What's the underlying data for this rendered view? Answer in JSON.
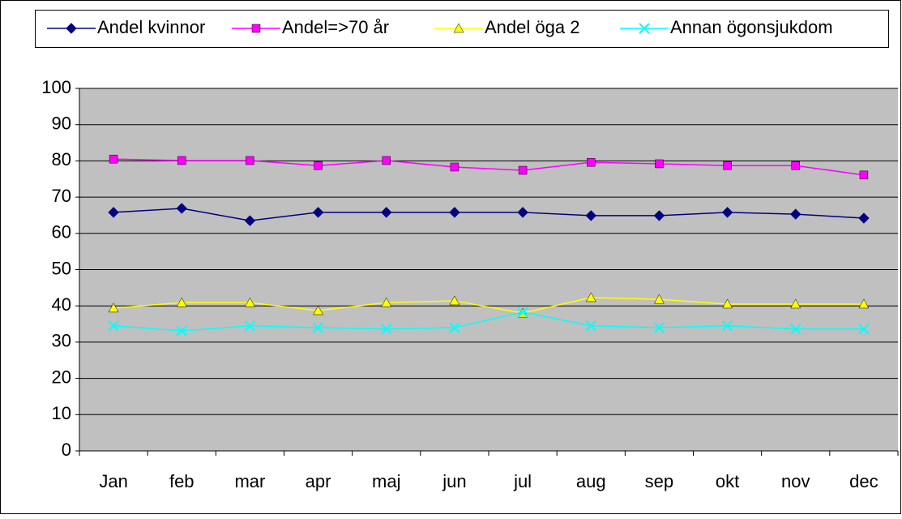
{
  "chart_data": {
    "type": "line",
    "categories": [
      "Jan",
      "feb",
      "mar",
      "apr",
      "maj",
      "jun",
      "jul",
      "aug",
      "sep",
      "okt",
      "nov",
      "dec"
    ],
    "series": [
      {
        "name": "Andel kvinnor",
        "color": "#000080",
        "marker": "diamond",
        "values": [
          65.8,
          66.9,
          63.5,
          65.8,
          65.8,
          65.8,
          65.8,
          64.9,
          64.9,
          65.8,
          65.3,
          64.2
        ]
      },
      {
        "name": "Andel=>70 år",
        "color": "#FF00FF",
        "marker": "square",
        "values": [
          80.5,
          80.1,
          80.1,
          78.7,
          80.1,
          78.3,
          77.4,
          79.6,
          79.2,
          78.7,
          78.7,
          76.1
        ]
      },
      {
        "name": "Andel öga 2",
        "color": "#FFFF00",
        "marker": "triangle",
        "values": [
          39.4,
          40.9,
          40.9,
          38.7,
          40.9,
          41.4,
          38.0,
          42.3,
          41.8,
          40.5,
          40.5,
          40.5
        ]
      },
      {
        "name": "Annan ögonsjukdom",
        "color": "#00FFFF",
        "marker": "x",
        "values": [
          34.5,
          33.1,
          34.5,
          34.0,
          33.6,
          34.0,
          38.3,
          34.5,
          34.0,
          34.5,
          33.6,
          33.6
        ]
      }
    ],
    "ylim": [
      0,
      100
    ],
    "yticks": [
      0,
      10,
      20,
      30,
      40,
      50,
      60,
      70,
      80,
      90,
      100
    ],
    "grid": true,
    "legend": "top"
  }
}
